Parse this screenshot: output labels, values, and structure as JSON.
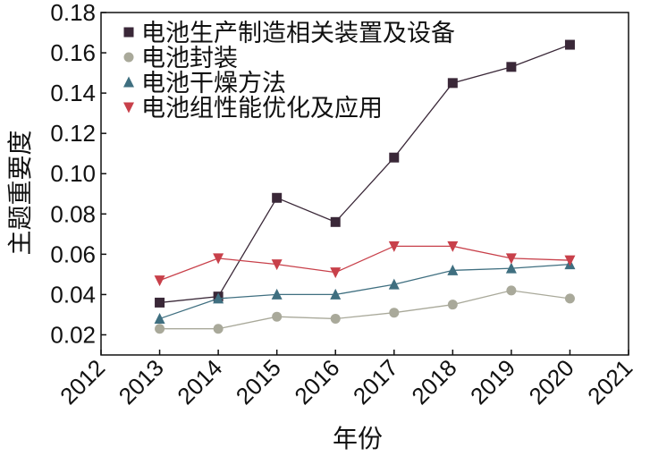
{
  "chart_data": {
    "type": "line",
    "xlabel": "年份",
    "ylabel": "主题重要度",
    "xlim": [
      2012,
      2021
    ],
    "ylim": [
      0.01,
      0.18
    ],
    "x_ticks": [
      "2012",
      "2013",
      "2014",
      "2015",
      "2016",
      "2017",
      "2018",
      "2019",
      "2020",
      "2021"
    ],
    "y_ticks": [
      "0.02",
      "0.04",
      "0.06",
      "0.08",
      "0.10",
      "0.12",
      "0.14",
      "0.16",
      "0.18"
    ],
    "x": [
      2013,
      2014,
      2015,
      2016,
      2017,
      2018,
      2019,
      2020
    ],
    "legend_position": "top-left",
    "grid": false,
    "series": [
      {
        "name": "电池生产制造相关装置及设备",
        "marker": "square",
        "color": "#3a2838",
        "values": [
          0.036,
          0.039,
          0.088,
          0.076,
          0.108,
          0.145,
          0.153,
          0.164
        ]
      },
      {
        "name": "电池封装",
        "marker": "circle",
        "color": "#a9a99a",
        "values": [
          0.023,
          0.023,
          0.029,
          0.028,
          0.031,
          0.035,
          0.042,
          0.038
        ]
      },
      {
        "name": "电池干燥方法",
        "marker": "triangle-up",
        "color": "#3f6f80",
        "values": [
          0.028,
          0.038,
          0.04,
          0.04,
          0.045,
          0.052,
          0.053,
          0.055
        ]
      },
      {
        "name": "电池组性能优化及应用",
        "marker": "triangle-down",
        "color": "#c8404a",
        "values": [
          0.047,
          0.058,
          0.055,
          0.051,
          0.064,
          0.064,
          0.058,
          0.057
        ]
      }
    ]
  }
}
